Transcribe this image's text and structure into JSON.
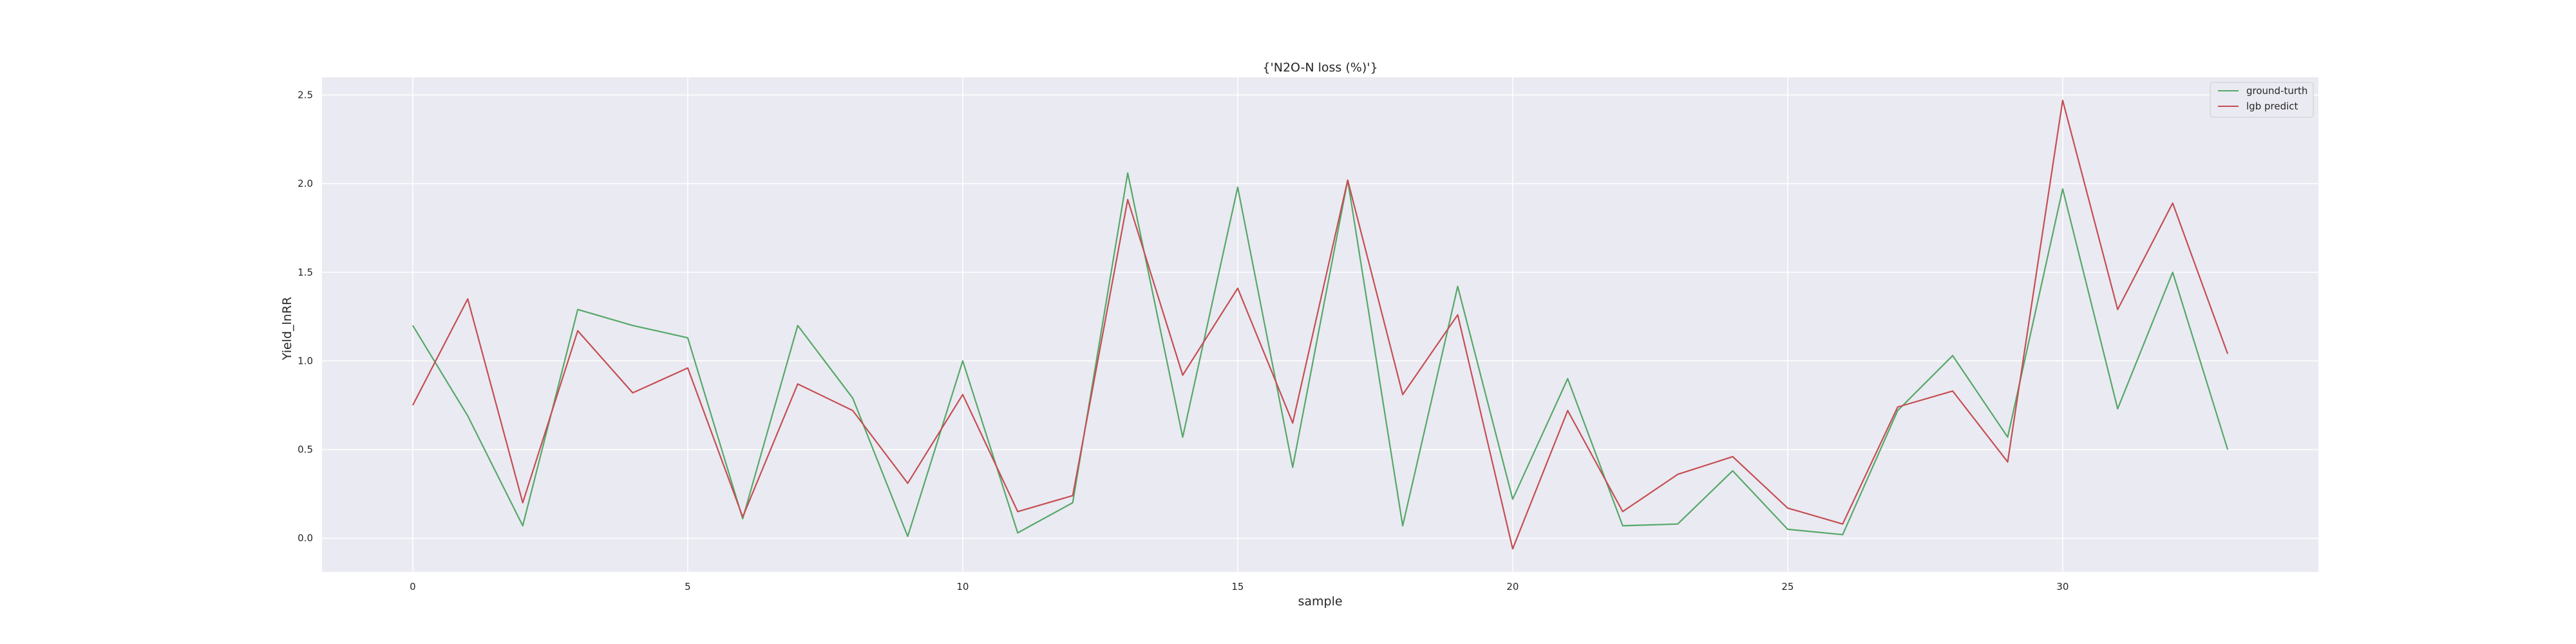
{
  "chart_data": {
    "type": "line",
    "title": "{'N2O-N loss (%)'}",
    "xlabel": "sample",
    "ylabel": "Yield_lnRR",
    "xlim": [
      -1.65,
      34.65
    ],
    "ylim": [
      -0.19,
      2.6
    ],
    "xticks": [
      0,
      5,
      10,
      15,
      20,
      25,
      30
    ],
    "yticks": [
      0.0,
      0.5,
      1.0,
      1.5,
      2.0,
      2.5
    ],
    "xtick_labels": [
      "0",
      "5",
      "10",
      "15",
      "20",
      "25",
      "30"
    ],
    "ytick_labels": [
      "0.0",
      "0.5",
      "1.0",
      "1.5",
      "2.0",
      "2.5"
    ],
    "grid": true,
    "legend_position": "top-right",
    "x": [
      0,
      1,
      2,
      3,
      4,
      5,
      6,
      7,
      8,
      9,
      10,
      11,
      12,
      13,
      14,
      15,
      16,
      17,
      18,
      19,
      20,
      21,
      22,
      23,
      24,
      25,
      26,
      27,
      28,
      29,
      30,
      31,
      32,
      33
    ],
    "series": [
      {
        "name": "ground-turth",
        "color": "#55a868",
        "values": [
          1.2,
          0.69,
          0.07,
          1.29,
          1.2,
          1.13,
          0.11,
          1.2,
          0.79,
          0.01,
          1.0,
          0.03,
          0.2,
          2.06,
          0.57,
          1.98,
          0.4,
          2.02,
          0.07,
          1.42,
          0.22,
          0.9,
          0.07,
          0.08,
          0.38,
          0.05,
          0.02,
          0.72,
          1.03,
          0.57,
          1.97,
          0.73,
          1.5,
          0.5
        ]
      },
      {
        "name": "lgb predict",
        "color": "#c44e52",
        "values": [
          0.75,
          1.35,
          0.2,
          1.17,
          0.82,
          0.96,
          0.12,
          0.87,
          0.72,
          0.31,
          0.81,
          0.15,
          0.24,
          1.91,
          0.92,
          1.41,
          0.65,
          2.02,
          0.81,
          1.26,
          -0.06,
          0.72,
          0.15,
          0.36,
          0.46,
          0.17,
          0.08,
          0.74,
          0.83,
          0.43,
          2.47,
          1.29,
          1.89,
          1.04
        ]
      }
    ]
  },
  "style": {
    "plot_background": "#eaeaf2",
    "grid_color": "#ffffff",
    "text_color": "#262626"
  }
}
